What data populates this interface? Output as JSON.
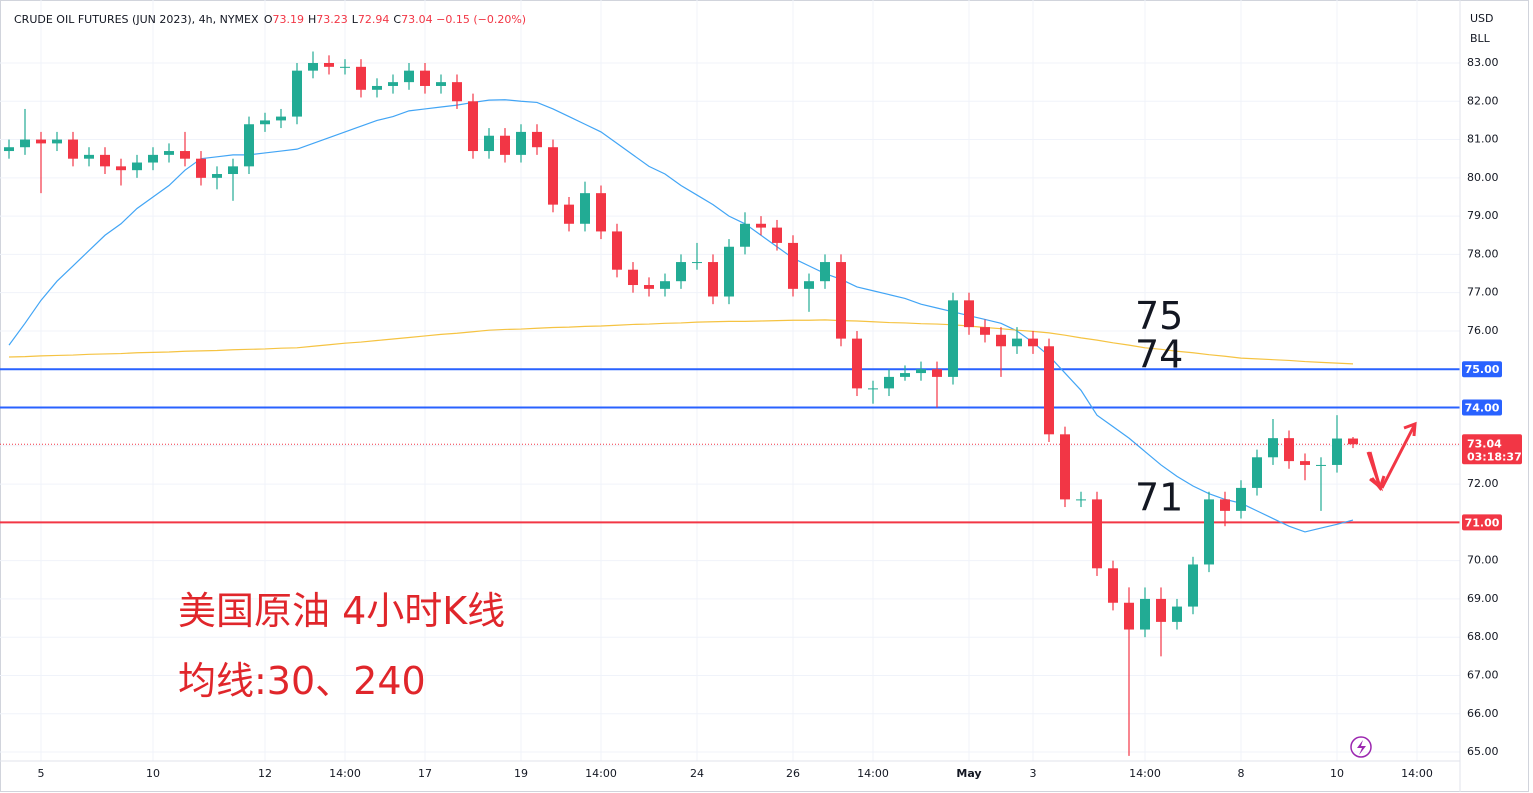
{
  "header": {
    "symbol": "CRUDE OIL FUTURES (JUN 2023), 4h, NYMEX",
    "ohlc": [
      {
        "key": "O",
        "value": "73.19"
      },
      {
        "key": "H",
        "value": "73.23"
      },
      {
        "key": "L",
        "value": "72.94"
      },
      {
        "key": "C",
        "value": "73.04"
      }
    ],
    "change": "−0.15 (−0.20%)",
    "currency": "USD",
    "unit": "BLL"
  },
  "annotations": [
    "美国原油 4小时K线",
    "均线:30、240"
  ],
  "chart_data": {
    "type": "candlestick",
    "categories": [
      null,
      null,
      "5",
      null,
      null,
      null,
      null,
      null,
      null,
      "10",
      null,
      null,
      null,
      null,
      null,
      null,
      "12",
      null,
      null,
      null,
      null,
      "14:00",
      null,
      null,
      null,
      null,
      "17",
      null,
      null,
      null,
      null,
      null,
      "19",
      null,
      null,
      null,
      null,
      "14:00",
      null,
      null,
      null,
      null,
      null,
      "24",
      null,
      null,
      null,
      null,
      null,
      "26",
      null,
      null,
      null,
      null,
      "14:00",
      null,
      null,
      null,
      null,
      null,
      "May",
      null,
      null,
      null,
      "3",
      null,
      null,
      null,
      null,
      null,
      null,
      "14:00",
      null,
      null,
      null,
      null,
      null,
      "8",
      null,
      null,
      null,
      null,
      null,
      "10",
      null,
      null,
      null,
      null,
      "14:00"
    ],
    "open": [
      80.7,
      80.8,
      81.0,
      80.9,
      81.0,
      80.5,
      80.6,
      80.3,
      80.2,
      80.4,
      80.6,
      80.7,
      80.5,
      80.0,
      80.1,
      80.3,
      81.4,
      81.5,
      81.6,
      82.8,
      83.0,
      82.9,
      82.9,
      82.3,
      82.4,
      82.5,
      82.8,
      82.4,
      82.5,
      82.0,
      80.7,
      81.1,
      80.6,
      81.2,
      80.8,
      79.3,
      78.8,
      79.6,
      78.6,
      77.6,
      77.2,
      77.1,
      77.3,
      77.8,
      77.8,
      76.9,
      78.2,
      78.8,
      78.7,
      78.3,
      77.1,
      77.3,
      77.8,
      75.8,
      74.5,
      74.5,
      74.8,
      74.9,
      75.0,
      74.8,
      76.8,
      76.1,
      75.9,
      75.6,
      75.8,
      75.6,
      73.3,
      71.6,
      71.6,
      69.8,
      68.9,
      68.2,
      69.0,
      68.4,
      68.8,
      69.9,
      71.6,
      71.3,
      71.9,
      72.7,
      73.2,
      72.6,
      72.5,
      72.5,
      73.19,
      null,
      null,
      null,
      null
    ],
    "high": [
      81.0,
      81.8,
      81.2,
      81.2,
      81.2,
      80.8,
      80.8,
      80.5,
      80.6,
      80.8,
      80.9,
      81.2,
      80.7,
      80.3,
      80.5,
      81.6,
      81.7,
      81.8,
      83.0,
      83.3,
      83.2,
      83.1,
      83.1,
      82.6,
      82.7,
      83.0,
      83.0,
      82.7,
      82.7,
      82.2,
      81.3,
      81.3,
      81.4,
      81.4,
      81.0,
      79.5,
      79.9,
      79.8,
      78.8,
      77.8,
      77.4,
      77.5,
      78.0,
      78.3,
      78.0,
      78.4,
      79.1,
      79.0,
      78.9,
      78.5,
      77.5,
      78.0,
      78.0,
      76.0,
      74.7,
      75.0,
      75.1,
      75.2,
      75.2,
      77.0,
      77.0,
      76.3,
      76.1,
      76.1,
      76.0,
      75.8,
      73.5,
      71.8,
      71.8,
      70.0,
      69.3,
      69.3,
      69.3,
      69.0,
      70.1,
      71.8,
      71.8,
      72.1,
      72.9,
      73.7,
      73.4,
      72.8,
      72.7,
      73.8,
      73.23,
      null,
      null,
      null,
      null
    ],
    "low": [
      80.5,
      80.6,
      79.6,
      80.7,
      80.3,
      80.3,
      80.1,
      79.8,
      80.0,
      80.2,
      80.4,
      80.3,
      79.8,
      79.7,
      79.4,
      80.1,
      81.2,
      81.3,
      81.4,
      82.6,
      82.7,
      82.7,
      82.1,
      82.1,
      82.2,
      82.3,
      82.2,
      82.2,
      81.8,
      80.5,
      80.5,
      80.4,
      80.4,
      80.6,
      79.1,
      78.6,
      78.6,
      78.4,
      77.4,
      77.0,
      76.9,
      76.9,
      77.1,
      77.6,
      76.7,
      76.7,
      78.0,
      78.5,
      78.1,
      76.9,
      76.5,
      77.1,
      75.6,
      74.3,
      74.1,
      74.3,
      74.7,
      74.7,
      74.0,
      74.6,
      75.9,
      75.7,
      74.8,
      75.4,
      75.4,
      73.1,
      71.4,
      71.4,
      69.6,
      68.7,
      64.9,
      68.0,
      67.5,
      68.2,
      68.6,
      69.7,
      70.9,
      71.1,
      71.7,
      72.5,
      72.4,
      72.1,
      71.3,
      72.3,
      72.94,
      null,
      null,
      null,
      null
    ],
    "close": [
      80.8,
      81.0,
      80.9,
      81.0,
      80.5,
      80.6,
      80.3,
      80.2,
      80.4,
      80.6,
      80.7,
      80.5,
      80.0,
      80.1,
      80.3,
      81.4,
      81.5,
      81.6,
      82.8,
      83.0,
      82.9,
      82.9,
      82.3,
      82.4,
      82.5,
      82.8,
      82.4,
      82.5,
      82.0,
      80.7,
      81.1,
      80.6,
      81.2,
      80.8,
      79.3,
      78.8,
      79.6,
      78.6,
      77.6,
      77.2,
      77.1,
      77.3,
      77.8,
      77.8,
      76.9,
      78.2,
      78.8,
      78.7,
      78.3,
      77.1,
      77.3,
      77.8,
      75.8,
      74.5,
      74.5,
      74.8,
      74.9,
      75.0,
      74.8,
      76.8,
      76.1,
      75.9,
      75.6,
      75.8,
      75.6,
      73.3,
      71.6,
      71.6,
      69.8,
      68.9,
      68.2,
      69.0,
      68.4,
      68.8,
      69.9,
      71.6,
      71.3,
      71.9,
      72.7,
      73.2,
      72.6,
      72.5,
      72.5,
      73.19,
      73.04,
      null,
      null,
      null,
      null
    ],
    "up_color": "#22ab94",
    "down_color": "#f23645",
    "moving_averages": [
      {
        "color": "#42a5f5",
        "values": [
          75.63,
          76.2,
          76.8,
          77.3,
          77.7,
          78.1,
          78.5,
          78.8,
          79.2,
          79.5,
          79.8,
          80.2,
          80.5,
          80.55,
          80.6,
          80.6,
          80.65,
          80.7,
          80.75,
          80.9,
          81.05,
          81.2,
          81.35,
          81.5,
          81.6,
          81.75,
          81.8,
          81.85,
          81.9,
          81.97,
          82.03,
          82.04,
          82.0,
          81.97,
          81.8,
          81.6,
          81.4,
          81.2,
          80.9,
          80.6,
          80.3,
          80.1,
          79.8,
          79.55,
          79.3,
          79.0,
          78.8,
          78.5,
          78.2,
          77.9,
          77.7,
          77.5,
          77.35,
          77.15,
          77.05,
          76.95,
          76.85,
          76.7,
          76.6,
          76.5,
          76.4,
          76.3,
          76.2,
          76.0,
          75.7,
          75.35,
          74.9,
          74.45,
          73.8,
          73.5,
          73.2,
          72.85,
          72.5,
          72.2,
          71.95,
          71.75,
          71.6,
          71.5,
          71.3,
          71.1,
          70.9,
          70.75,
          70.85,
          70.95,
          71.06,
          null,
          null,
          null,
          null
        ]
      },
      {
        "color": "#f5c342",
        "values": [
          75.32,
          75.33,
          75.35,
          75.36,
          75.37,
          75.39,
          75.4,
          75.41,
          75.43,
          75.44,
          75.45,
          75.47,
          75.48,
          75.49,
          75.51,
          75.52,
          75.53,
          75.55,
          75.56,
          75.6,
          75.64,
          75.68,
          75.71,
          75.75,
          75.79,
          75.83,
          75.87,
          75.91,
          75.94,
          75.98,
          76.02,
          76.04,
          76.05,
          76.07,
          76.09,
          76.1,
          76.12,
          76.13,
          76.15,
          76.17,
          76.18,
          76.2,
          76.21,
          76.23,
          76.24,
          76.25,
          76.25,
          76.26,
          76.27,
          76.28,
          76.28,
          76.29,
          76.27,
          76.26,
          76.24,
          76.22,
          76.21,
          76.19,
          76.18,
          76.16,
          76.13,
          76.09,
          76.06,
          76.02,
          75.99,
          75.95,
          75.89,
          75.82,
          75.76,
          75.69,
          75.63,
          75.56,
          75.52,
          75.47,
          75.43,
          75.38,
          75.34,
          75.29,
          75.27,
          75.25,
          75.23,
          75.2,
          75.18,
          75.16,
          75.14,
          null,
          null,
          null,
          null
        ]
      }
    ],
    "ylim": [
      64.6,
      84.65
    ],
    "yticks": [
      {
        "value": 65,
        "label": "65.00"
      },
      {
        "value": 66,
        "label": "66.00"
      },
      {
        "value": 67,
        "label": "67.00"
      },
      {
        "value": 68,
        "label": "68.00"
      },
      {
        "value": 69,
        "label": "69.00"
      },
      {
        "value": 70,
        "label": "70.00"
      },
      {
        "value": 71,
        "label": "71.00"
      },
      {
        "value": 72,
        "label": "72.00"
      },
      {
        "value": 73,
        "label": "73.00"
      },
      {
        "value": 74,
        "label": "74.00"
      },
      {
        "value": 75,
        "label": "75.00"
      },
      {
        "value": 76,
        "label": "76.00"
      },
      {
        "value": 77,
        "label": "77.00"
      },
      {
        "value": 78,
        "label": "78.00"
      },
      {
        "value": 79,
        "label": "79.00"
      },
      {
        "value": 80,
        "label": "80.00"
      },
      {
        "value": 81,
        "label": "81.00"
      },
      {
        "value": 82,
        "label": "82.00"
      },
      {
        "value": 83,
        "label": "83.00"
      }
    ],
    "levels": [
      {
        "value": 75,
        "label": "75.00",
        "note": "75",
        "color": "#2962ff"
      },
      {
        "value": 74,
        "label": "74.00",
        "note": "74",
        "color": "#2962ff"
      },
      {
        "value": 71,
        "label": "71.00",
        "note": "71",
        "color": "#f23645"
      }
    ],
    "last_price": {
      "value": 73.04,
      "label": "73.04",
      "countdown": "03:18:37",
      "color": "#f23645"
    },
    "grid": true
  }
}
